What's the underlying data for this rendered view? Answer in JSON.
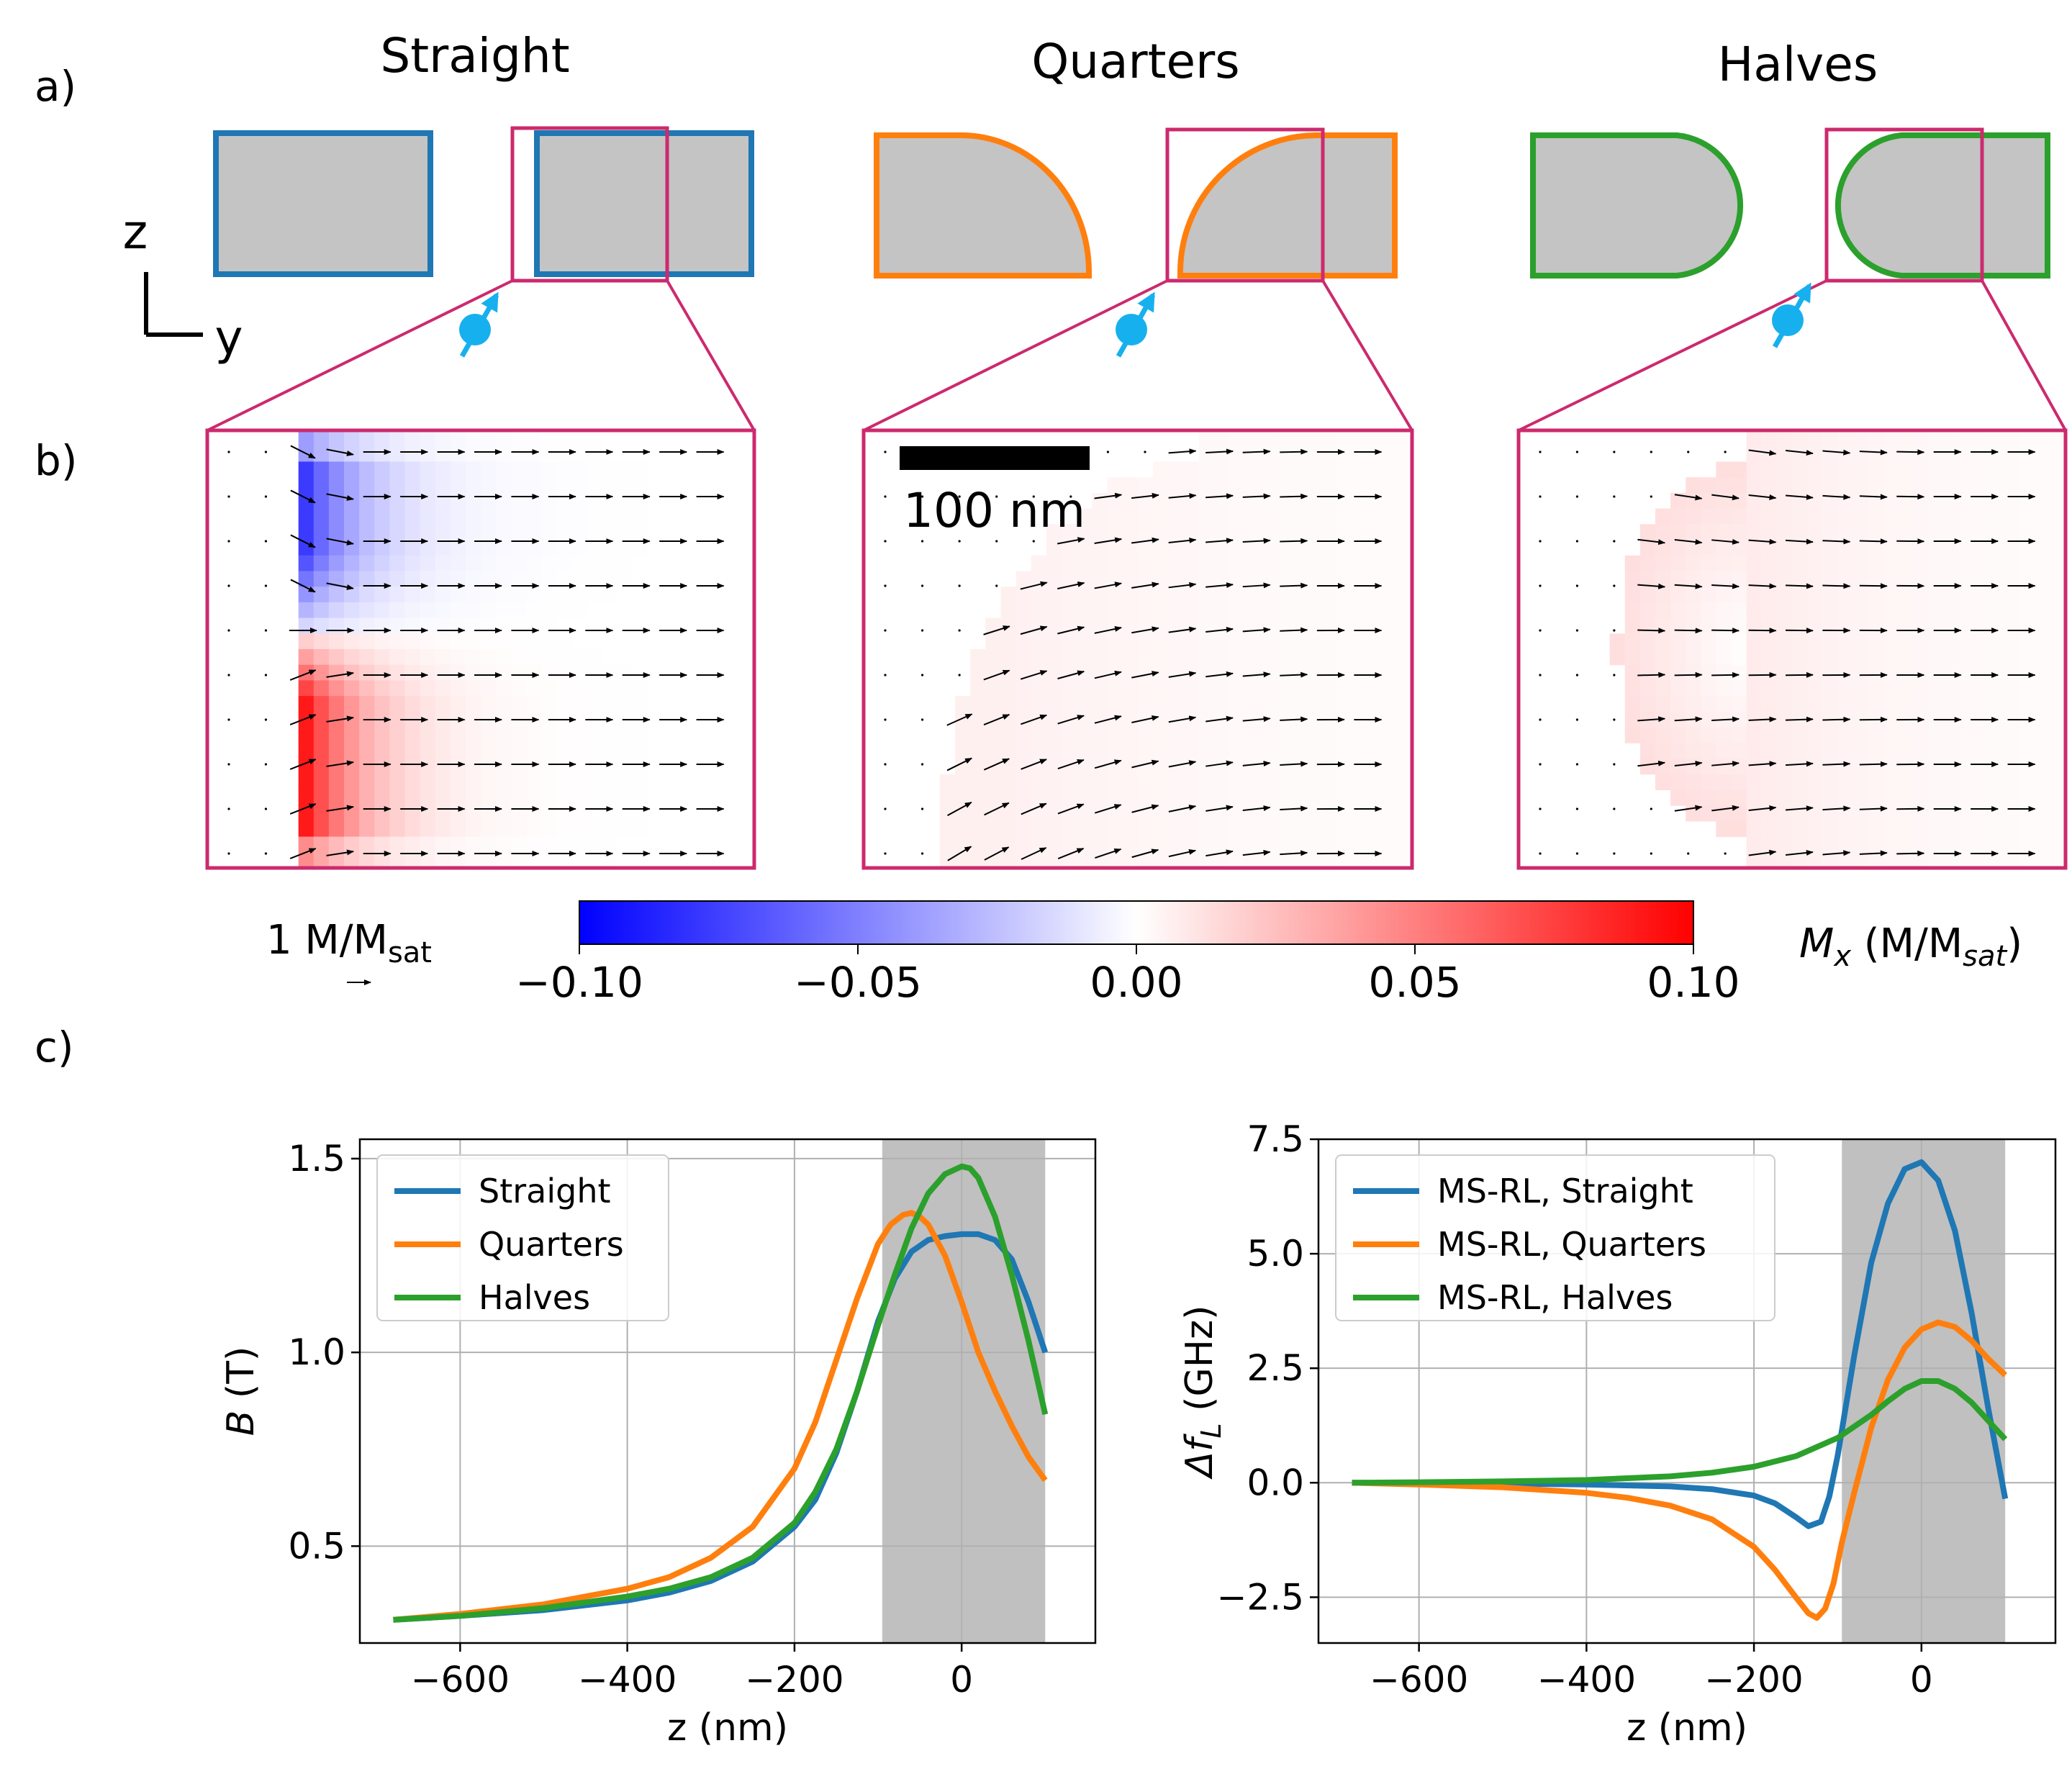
{
  "panel_labels": {
    "a": "a)",
    "b": "b)",
    "c": "c)"
  },
  "shapes": [
    {
      "title": "Straight",
      "color": "#1f77b4"
    },
    {
      "title": "Quarters",
      "color": "#ff7f0e"
    },
    {
      "title": "Halves",
      "color": "#2ca02c"
    }
  ],
  "zoom_color": "#cc2a6e",
  "body_fill": "#c4c4c4",
  "spin_color": "#17b0ee",
  "axes_labels": {
    "z": "z",
    "y": "y"
  },
  "scale_bar": {
    "text": "100 nm"
  },
  "arrow_key": {
    "text": "1 M/M",
    "sub": "sat"
  },
  "colorbar": {
    "ticks": [
      "−0.10",
      "−0.05",
      "0.00",
      "0.05",
      "0.10"
    ],
    "min": -0.1,
    "max": 0.1,
    "label_main": "M",
    "label_sub1": "x",
    "label_mid": " (M/M",
    "label_sub2": "sat",
    "label_end": ")"
  },
  "chart_data": [
    {
      "type": "line",
      "title": "",
      "xlabel": "z (nm)",
      "ylabel": "B (T)",
      "ylabel_parts": {
        "var": "B",
        "unit": " (T)"
      },
      "xlim": [
        -720,
        160
      ],
      "ylim": [
        0.25,
        1.55
      ],
      "xticks": [
        -600,
        -400,
        -200,
        0
      ],
      "xtick_labels": [
        "−600",
        "−400",
        "−200",
        "0"
      ],
      "yticks": [
        0.5,
        1.0,
        1.5
      ],
      "ytick_labels": [
        "0.5",
        "1.0",
        "1.5"
      ],
      "grid": true,
      "shaded_region": [
        -95,
        100
      ],
      "legend_position": "top-left",
      "series": [
        {
          "name": "Straight",
          "color": "#1f77b4",
          "x": [
            -680,
            -600,
            -500,
            -400,
            -350,
            -300,
            -250,
            -200,
            -175,
            -150,
            -125,
            -100,
            -80,
            -60,
            -40,
            -20,
            0,
            20,
            40,
            60,
            80,
            100
          ],
          "y": [
            0.31,
            0.32,
            0.335,
            0.36,
            0.38,
            0.41,
            0.46,
            0.55,
            0.62,
            0.74,
            0.9,
            1.08,
            1.19,
            1.26,
            1.29,
            1.3,
            1.305,
            1.305,
            1.29,
            1.24,
            1.13,
            1.0
          ]
        },
        {
          "name": "Quarters",
          "color": "#ff7f0e",
          "x": [
            -680,
            -600,
            -500,
            -400,
            -350,
            -300,
            -250,
            -200,
            -175,
            -150,
            -125,
            -100,
            -85,
            -70,
            -60,
            -50,
            -40,
            -20,
            0,
            20,
            40,
            60,
            80,
            100
          ],
          "y": [
            0.31,
            0.325,
            0.35,
            0.39,
            0.42,
            0.47,
            0.55,
            0.7,
            0.82,
            0.98,
            1.14,
            1.28,
            1.33,
            1.355,
            1.36,
            1.35,
            1.33,
            1.25,
            1.13,
            1.0,
            0.9,
            0.81,
            0.73,
            0.67
          ]
        },
        {
          "name": "Halves",
          "color": "#2ca02c",
          "x": [
            -680,
            -600,
            -500,
            -400,
            -350,
            -300,
            -250,
            -200,
            -175,
            -150,
            -125,
            -100,
            -80,
            -60,
            -40,
            -20,
            0,
            10,
            20,
            40,
            60,
            80,
            100
          ],
          "y": [
            0.31,
            0.32,
            0.34,
            0.37,
            0.39,
            0.42,
            0.47,
            0.56,
            0.64,
            0.75,
            0.9,
            1.07,
            1.2,
            1.32,
            1.41,
            1.46,
            1.48,
            1.475,
            1.45,
            1.35,
            1.2,
            1.03,
            0.84
          ]
        }
      ]
    },
    {
      "type": "line",
      "title": "",
      "xlabel": "z (nm)",
      "ylabel": "Δf_L (GHz)",
      "ylabel_parts": {
        "var": "Δf",
        "sub": "L",
        "unit": " (GHz)"
      },
      "xlim": [
        -720,
        160
      ],
      "ylim": [
        -3.5,
        7.5
      ],
      "xticks": [
        -600,
        -400,
        -200,
        0
      ],
      "xtick_labels": [
        "−600",
        "−400",
        "−200",
        "0"
      ],
      "yticks": [
        -2.5,
        0.0,
        2.5,
        5.0,
        7.5
      ],
      "ytick_labels": [
        "−2.5",
        "0.0",
        "2.5",
        "5.0",
        "7.5"
      ],
      "grid": true,
      "shaded_region": [
        -95,
        100
      ],
      "legend_position": "top-left",
      "series": [
        {
          "name": "MS-RL, Straight",
          "color": "#1f77b4",
          "x": [
            -680,
            -600,
            -500,
            -400,
            -300,
            -250,
            -200,
            -175,
            -150,
            -135,
            -120,
            -110,
            -100,
            -90,
            -80,
            -60,
            -40,
            -20,
            0,
            20,
            40,
            60,
            80,
            100
          ],
          "y": [
            0.0,
            -0.01,
            -0.02,
            -0.04,
            -0.08,
            -0.14,
            -0.28,
            -0.45,
            -0.75,
            -0.95,
            -0.85,
            -0.3,
            0.6,
            1.7,
            2.8,
            4.8,
            6.1,
            6.85,
            7.0,
            6.6,
            5.5,
            3.7,
            1.6,
            -0.35
          ]
        },
        {
          "name": "MS-RL, Quarters",
          "color": "#ff7f0e",
          "x": [
            -680,
            -600,
            -500,
            -400,
            -350,
            -300,
            -250,
            -200,
            -175,
            -150,
            -135,
            -125,
            -115,
            -105,
            -95,
            -80,
            -60,
            -40,
            -20,
            0,
            20,
            40,
            60,
            80,
            100
          ],
          "y": [
            0.0,
            -0.04,
            -0.1,
            -0.22,
            -0.33,
            -0.5,
            -0.8,
            -1.4,
            -1.9,
            -2.5,
            -2.85,
            -2.95,
            -2.75,
            -2.2,
            -1.3,
            -0.2,
            1.2,
            2.25,
            2.95,
            3.35,
            3.5,
            3.4,
            3.1,
            2.7,
            2.35
          ]
        },
        {
          "name": "MS-RL, Halves",
          "color": "#2ca02c",
          "x": [
            -680,
            -600,
            -500,
            -400,
            -300,
            -250,
            -200,
            -150,
            -100,
            -60,
            -40,
            -20,
            0,
            20,
            40,
            60,
            80,
            100
          ],
          "y": [
            0.0,
            0.01,
            0.03,
            0.06,
            0.14,
            0.22,
            0.35,
            0.58,
            0.98,
            1.48,
            1.78,
            2.05,
            2.22,
            2.22,
            2.05,
            1.75,
            1.35,
            0.95
          ]
        }
      ]
    }
  ]
}
